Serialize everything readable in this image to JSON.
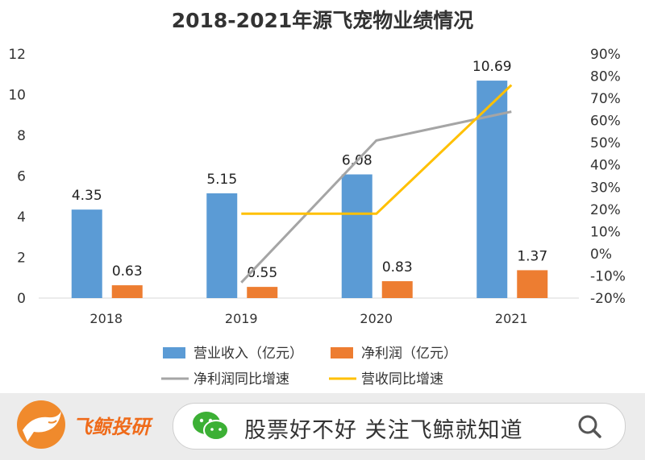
{
  "chart_data": {
    "type": "bar",
    "title": "2018-2021年源飞宠物业绩情况",
    "categories": [
      "2018",
      "2019",
      "2020",
      "2021"
    ],
    "series": [
      {
        "name": "营业收入（亿元）",
        "type": "bar",
        "axis": "left",
        "color": "#5b9bd5",
        "values": [
          4.35,
          5.15,
          6.08,
          10.69
        ]
      },
      {
        "name": "净利润（亿元）",
        "type": "bar",
        "axis": "left",
        "color": "#ed7d31",
        "values": [
          0.63,
          0.55,
          0.83,
          1.37
        ]
      },
      {
        "name": "净利润同比增速",
        "type": "line",
        "axis": "right",
        "color": "#a5a5a5",
        "values": [
          null,
          -0.13,
          0.51,
          0.64
        ]
      },
      {
        "name": "营收同比增速",
        "type": "line",
        "axis": "right",
        "color": "#ffc000",
        "values": [
          null,
          0.18,
          0.18,
          0.76
        ]
      }
    ],
    "data_labels": {
      "营业收入（亿元）": [
        "4.35",
        "5.15",
        "6.08",
        "10.69"
      ],
      "净利润（亿元）": [
        "0.63",
        "0.55",
        "0.83",
        "1.37"
      ]
    },
    "y_left": {
      "min": 0,
      "max": 12,
      "ticks": [
        "0",
        "2",
        "4",
        "6",
        "8",
        "10",
        "12"
      ]
    },
    "y_right": {
      "min": -0.2,
      "max": 0.9,
      "ticks": [
        "-20%",
        "-10%",
        "0%",
        "10%",
        "20%",
        "30%",
        "40%",
        "50%",
        "60%",
        "70%",
        "80%",
        "90%"
      ]
    },
    "grid": false,
    "legend_position": "bottom"
  },
  "footer": {
    "brand": "飞鲸投研",
    "search_text": "股票好不好 关注飞鲸就知道"
  }
}
